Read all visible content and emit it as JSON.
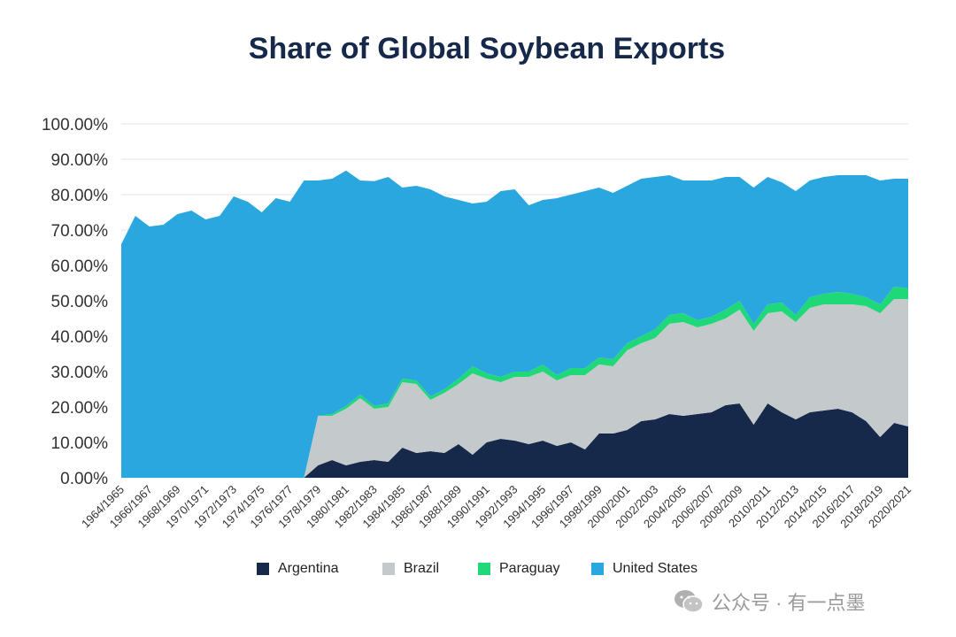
{
  "chart_data": {
    "type": "area",
    "stacked": true,
    "title": "Share of Global Soybean Exports",
    "x": [
      "1964/1965",
      "1965/1966",
      "1966/1967",
      "1967/1968",
      "1968/1969",
      "1969/1970",
      "1970/1971",
      "1971/1972",
      "1972/1973",
      "1973/1974",
      "1974/1975",
      "1975/1976",
      "1976/1977",
      "1977/1978",
      "1978/1979",
      "1979/1980",
      "1980/1981",
      "1981/1982",
      "1982/1983",
      "1983/1984",
      "1984/1985",
      "1985/1986",
      "1986/1987",
      "1987/1988",
      "1988/1989",
      "1989/1990",
      "1990/1991",
      "1991/1992",
      "1992/1993",
      "1993/1994",
      "1994/1995",
      "1995/1996",
      "1996/1997",
      "1997/1998",
      "1998/1999",
      "1999/2000",
      "2000/2001",
      "2001/2002",
      "2002/2003",
      "2003/2004",
      "2004/2005",
      "2005/2006",
      "2006/2007",
      "2007/2008",
      "2008/2009",
      "2009/2010",
      "2010/2011",
      "2011/2012",
      "2012/2013",
      "2013/2014",
      "2014/2015",
      "2015/2016",
      "2016/2017",
      "2017/2018",
      "2018/2019",
      "2019/2020",
      "2020/2021"
    ],
    "tick_labels": [
      "1964/1965",
      "1966/1967",
      "1968/1969",
      "1970/1971",
      "1972/1973",
      "1974/1975",
      "1976/1977",
      "1978/1979",
      "1980/1981",
      "1982/1983",
      "1984/1985",
      "1986/1987",
      "1988/1989",
      "1990/1991",
      "1992/1993",
      "1994/1995",
      "1996/1997",
      "1998/1999",
      "2000/2001",
      "2002/2003",
      "2004/2005",
      "2006/2007",
      "2008/2009",
      "2010/2011",
      "2012/2013",
      "2014/2015",
      "2016/2017",
      "2018/2019",
      "2020/2021"
    ],
    "series": [
      {
        "name": "Argentina",
        "color": "#17294a",
        "values": [
          0,
          0,
          0,
          0,
          0,
          0,
          0,
          0,
          0,
          0,
          0,
          0,
          0,
          0,
          3.5,
          5,
          3.5,
          4.5,
          5,
          4.5,
          8.5,
          7,
          7.5,
          7,
          9.5,
          6.5,
          10,
          11,
          10.5,
          9.5,
          10.5,
          9,
          10,
          8,
          12.5,
          12.5,
          13.5,
          16,
          16.5,
          18,
          17.5,
          18,
          18.5,
          20.5,
          21,
          15,
          21,
          18.5,
          16.5,
          18.5,
          19,
          19.5,
          18.5,
          16,
          11.5,
          15.5,
          14.5
        ]
      },
      {
        "name": "Brazil",
        "color": "#c4c9cc",
        "values": [
          0,
          0,
          0,
          0,
          0,
          0,
          0,
          0,
          0,
          0,
          0,
          0,
          0,
          0,
          14,
          12.5,
          16,
          18,
          14.5,
          15.5,
          18.5,
          19.5,
          14.5,
          17,
          17,
          23,
          18,
          16,
          18,
          19,
          19.5,
          18.5,
          19,
          21,
          19.5,
          19,
          22.5,
          22,
          23,
          25.5,
          26.5,
          24.5,
          25,
          24.5,
          26.5,
          26.5,
          25.5,
          28.5,
          27.5,
          29.5,
          30,
          29.5,
          30.5,
          32.5,
          35,
          35,
          36
        ]
      },
      {
        "name": "Paraguay",
        "color": "#1fd877",
        "values": [
          0,
          0,
          0,
          0,
          0,
          0,
          0,
          0,
          0,
          0,
          0,
          0,
          0,
          0,
          0,
          0.5,
          0.8,
          1,
          0.8,
          1,
          1,
          1,
          1,
          1,
          1.5,
          2,
          1.5,
          1.5,
          1.5,
          1.5,
          2,
          1.5,
          2,
          2,
          2,
          2,
          2,
          2,
          2.5,
          2.5,
          2.5,
          2,
          2,
          2.5,
          2.5,
          2,
          2.5,
          2.5,
          2,
          3,
          3,
          3.5,
          3,
          2.5,
          2.5,
          3.5,
          3
        ]
      },
      {
        "name": "United States",
        "color": "#2aa7df",
        "values": [
          66,
          74,
          71,
          71.5,
          74.5,
          75.5,
          73,
          74,
          79.5,
          78,
          75,
          79,
          78,
          84,
          66.5,
          66.5,
          66.5,
          60.5,
          63.5,
          64,
          54,
          55,
          58.5,
          54.5,
          50.5,
          46,
          48.5,
          52.5,
          51.5,
          47,
          46.5,
          50,
          49,
          50,
          48,
          47,
          44.5,
          44.5,
          43,
          39.5,
          37.5,
          39.5,
          38.5,
          37.5,
          35,
          38.5,
          36,
          34,
          35,
          33,
          33,
          33,
          33.5,
          34.5,
          35,
          30.5,
          31
        ]
      }
    ],
    "ylim": [
      0,
      100
    ],
    "yticks": [
      "0.00%",
      "10.00%",
      "20.00%",
      "30.00%",
      "40.00%",
      "50.00%",
      "60.00%",
      "70.00%",
      "80.00%",
      "90.00%",
      "100.00%"
    ],
    "grid": true,
    "legend_position": "bottom"
  },
  "watermark": {
    "text": "公众号 · 有一点墨"
  }
}
